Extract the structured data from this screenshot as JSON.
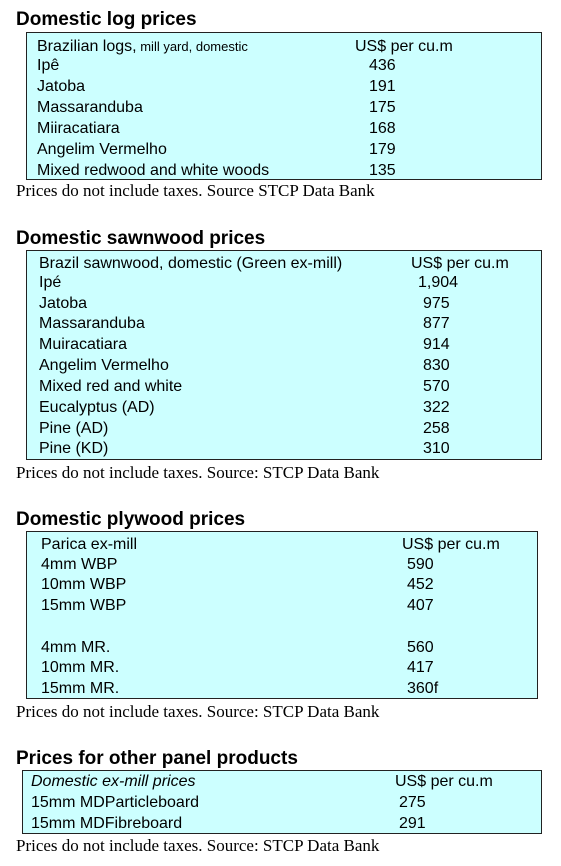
{
  "log": {
    "title": "Domestic log prices",
    "header_main": "Brazilian logs,",
    "header_sub": " mill yard, domestic",
    "header_unit": "US$ per cu.m",
    "rows": [
      {
        "name": "Ipê",
        "value": "436"
      },
      {
        "name": "Jatoba",
        "value": "191"
      },
      {
        "name": "Massaranduba",
        "value": "175"
      },
      {
        "name": "Miiracatiara",
        "value": "168"
      },
      {
        "name": "Angelim Vermelho",
        "value": "179"
      },
      {
        "name": "Mixed redwood and white woods",
        "value": "135"
      }
    ],
    "note": "Prices do not include taxes. Source STCP Data Bank"
  },
  "sawn": {
    "title": "Domestic sawnwood prices",
    "header_main": "Brazil sawnwood, domestic (Green ex-mill)",
    "header_unit": "US$ per cu.m",
    "rows": [
      {
        "name": "Ipé",
        "value": "1,904"
      },
      {
        "name": "Jatoba",
        "value": "975"
      },
      {
        "name": "Massaranduba",
        "value": "877"
      },
      {
        "name": "Muiracatiara",
        "value": "914"
      },
      {
        "name": "Angelim Vermelho",
        "value": "830"
      },
      {
        "name": "Mixed red and white",
        "value": "570"
      },
      {
        "name": "Eucalyptus (AD)",
        "value": "322"
      },
      {
        "name": "Pine (AD)",
        "value": "258"
      },
      {
        "name": "Pine (KD)",
        "value": "310"
      }
    ],
    "note": "Prices do not include taxes. Source: STCP Data Bank"
  },
  "ply": {
    "title": "Domestic plywood prices",
    "header_main": "Parica ex-mill",
    "header_unit": "US$ per cu.m",
    "rows": [
      {
        "name": "4mm WBP",
        "value": "590"
      },
      {
        "name": "10mm WBP",
        "value": "452"
      },
      {
        "name": "15mm WBP",
        "value": "407"
      },
      {
        "name": "4mm MR.",
        "value": "560"
      },
      {
        "name": "10mm MR.",
        "value": "417"
      },
      {
        "name": "15mm MR.",
        "value": "360f"
      }
    ],
    "note": "Prices do not include taxes. Source: STCP Data Bank"
  },
  "panel": {
    "title": "Prices for other panel products",
    "header_main": "Domestic ex-mill prices",
    "header_unit": "US$ per cu.m",
    "rows": [
      {
        "name": "15mm MDParticleboard",
        "value": "275"
      },
      {
        "name": "15mm MDFibreboard",
        "value": "291"
      }
    ],
    "note": "Prices do not include taxes. Source: STCP Data Bank"
  }
}
